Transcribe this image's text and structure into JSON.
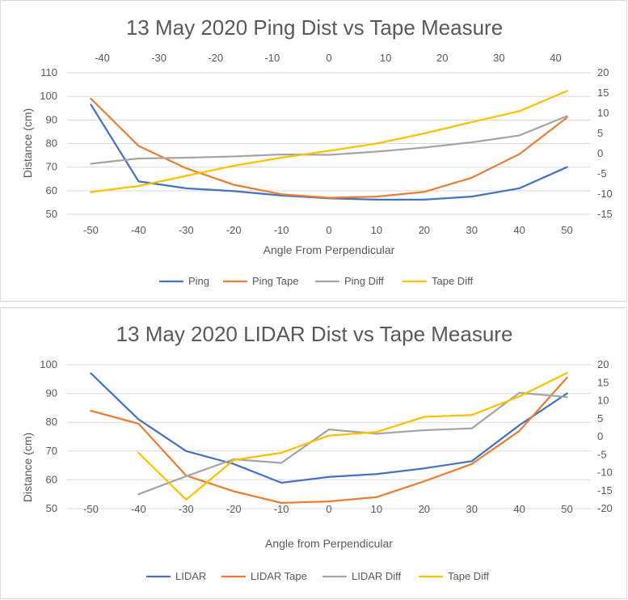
{
  "chart_data": [
    {
      "type": "line",
      "title": "13 May 2020 Ping Dist vs Tape Measure",
      "xlabel": "Angle From Perpendicular",
      "ylabel": "Distance (cm)",
      "categories": [
        "-50",
        "-40",
        "-30",
        "-20",
        "-10",
        "0",
        "10",
        "20",
        "30",
        "40",
        "50"
      ],
      "ylim": [
        50,
        110
      ],
      "yticks": [
        50,
        60,
        70,
        80,
        90,
        100,
        110
      ],
      "y2lim": [
        -15,
        20
      ],
      "y2ticks": [
        -15,
        -10,
        -5,
        0,
        5,
        10,
        15,
        20
      ],
      "x2lim": [
        -42,
        42
      ],
      "x2ticks": [
        -40,
        -30,
        -20,
        -10,
        0,
        10,
        20,
        30,
        40
      ],
      "grid": true,
      "legend": "bottom",
      "series": [
        {
          "name": "Ping",
          "axis": "primary",
          "color": "#4472C4",
          "values": [
            96.5,
            64,
            61,
            59.8,
            58,
            56.8,
            56.2,
            56.2,
            57.5,
            61,
            70
          ]
        },
        {
          "name": "Ping Tape",
          "axis": "primary",
          "color": "#ED7D31",
          "values": [
            99,
            79,
            69.5,
            62.5,
            58.5,
            57,
            57.5,
            59.5,
            65.5,
            75.5,
            91
          ]
        },
        {
          "name": "Ping Diff",
          "axis": "secondary",
          "color": "#A5A5A5",
          "values": [
            -2.5,
            -1.2,
            -1,
            -0.7,
            -0.2,
            -0.3,
            0.5,
            1.5,
            2.8,
            4.5,
            9.3
          ]
        },
        {
          "name": "Tape Diff",
          "axis": "secondary",
          "color": "#FFC000",
          "values": [
            -9.5,
            -8,
            -5.5,
            -3,
            -1,
            0.7,
            2.5,
            5,
            7.8,
            10.5,
            15.5
          ]
        }
      ]
    },
    {
      "type": "line",
      "title": "13 May 2020 LIDAR Dist vs Tape Measure",
      "xlabel": "Angle from Perpendicular",
      "ylabel": "Distance (cm)",
      "categories": [
        "-50",
        "-40",
        "-30",
        "-20",
        "-10",
        "0",
        "10",
        "20",
        "30",
        "40",
        "50"
      ],
      "ylim": [
        50,
        100
      ],
      "yticks": [
        50,
        60,
        70,
        80,
        90,
        100
      ],
      "y2lim": [
        -20,
        20
      ],
      "y2ticks": [
        -20,
        -15,
        -10,
        -5,
        0,
        5,
        10,
        15,
        20
      ],
      "grid": true,
      "legend": "bottom",
      "series": [
        {
          "name": "LIDAR",
          "axis": "primary",
          "color": "#4472C4",
          "values": [
            97,
            81,
            70,
            65.5,
            59,
            61,
            62,
            64,
            66.5,
            79,
            90
          ]
        },
        {
          "name": "LIDAR Tape",
          "axis": "primary",
          "color": "#ED7D31",
          "values": [
            84,
            79.5,
            61.5,
            56,
            52,
            52.5,
            54,
            59.5,
            65.5,
            77,
            95.5
          ]
        },
        {
          "name": "LIDAR Diff",
          "axis": "secondary",
          "color": "#A5A5A5",
          "values": [
            null,
            -16,
            -11,
            -6.3,
            -7.3,
            2,
            0.8,
            1.8,
            2.3,
            12.2,
            11
          ]
        },
        {
          "name": "Tape Diff",
          "axis": "secondary",
          "color": "#FFC000",
          "values": [
            null,
            -4.5,
            -17.5,
            -6.5,
            -4.5,
            0.3,
            1.3,
            5.5,
            6,
            11.2,
            17.7
          ]
        }
      ]
    }
  ]
}
